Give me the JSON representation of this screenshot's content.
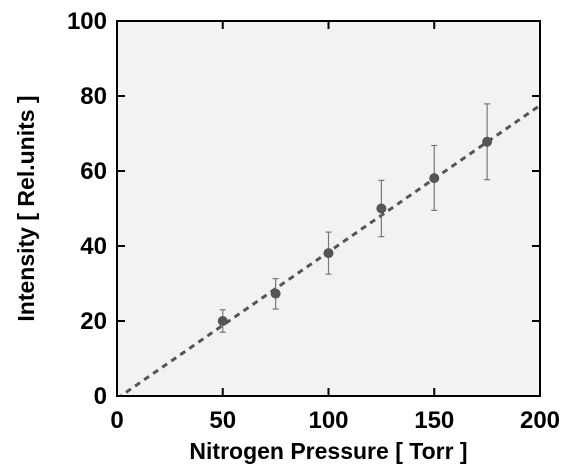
{
  "chart_data": {
    "type": "scatter",
    "title": "",
    "xlabel": "Nitrogen Pressure [ Torr ]",
    "ylabel": "Intensity [ Rel.units ]",
    "xlim": [
      0,
      200
    ],
    "ylim": [
      0,
      100
    ],
    "xticks": [
      0,
      50,
      100,
      150,
      200
    ],
    "yticks": [
      0,
      20,
      40,
      60,
      80,
      100
    ],
    "grid": false,
    "plot_background": "#f2f2f2",
    "series": [
      {
        "marker_color": "#555555",
        "errorbar_color": "#777777",
        "points": [
          {
            "x": 50,
            "y": 20.0,
            "yerr_low": 17.0,
            "yerr_high": 23.0
          },
          {
            "x": 75,
            "y": 27.3,
            "yerr_low": 23.2,
            "yerr_high": 31.3
          },
          {
            "x": 100,
            "y": 38.1,
            "yerr_low": 32.5,
            "yerr_high": 43.7
          },
          {
            "x": 125,
            "y": 50.0,
            "yerr_low": 42.5,
            "yerr_high": 57.5
          },
          {
            "x": 150,
            "y": 58.1,
            "yerr_low": 49.5,
            "yerr_high": 66.8
          },
          {
            "x": 175,
            "y": 67.8,
            "yerr_low": 57.7,
            "yerr_high": 77.9
          }
        ]
      }
    ],
    "fit_line": {
      "style": "dashed",
      "color": "#555555",
      "points": [
        {
          "x": 0,
          "y": -0.7
        },
        {
          "x": 200,
          "y": 77.5
        }
      ]
    }
  }
}
